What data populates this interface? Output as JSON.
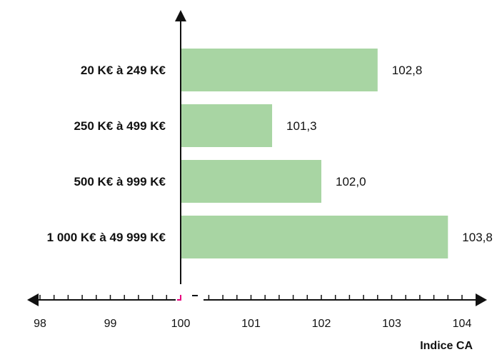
{
  "chart_data": {
    "type": "bar",
    "orientation": "horizontal",
    "categories": [
      "20 K€ à 249 K€",
      "250 K€ à 499 K€",
      "500 K€ à 999 K€",
      "1 000 K€ à 49 999 K€"
    ],
    "values": [
      102.8,
      101.3,
      102.0,
      103.8
    ],
    "value_labels": [
      "102,8",
      "101,3",
      "102,0",
      "103,8"
    ],
    "xlabel": "Indice CA",
    "xlim": [
      98,
      104
    ],
    "x_ticks": [
      "98",
      "99",
      "100",
      "101",
      "102",
      "103",
      "104"
    ],
    "baseline": 100,
    "grid": false,
    "bar_color": "#a8d5a3",
    "axis_color": "#111111",
    "baseline_marker_color": "#e6007e"
  }
}
